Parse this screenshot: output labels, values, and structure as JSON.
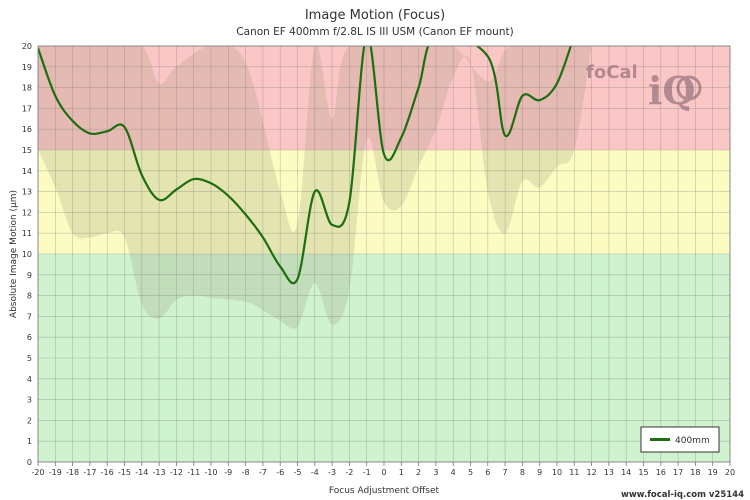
{
  "chart_data": {
    "type": "line",
    "title": "Image Motion (Focus)",
    "subtitle": "Canon EF 400mm f/2.8L IS III USM (Canon EF mount)",
    "xlabel": "Focus Adjustment Offset",
    "ylabel": "Absolute Image Motion (µm)",
    "xlim": [
      -20,
      20
    ],
    "ylim": [
      0,
      20
    ],
    "x_ticks": [
      -20,
      -19,
      -18,
      -17,
      -16,
      -15,
      -14,
      -13,
      -12,
      -11,
      -10,
      -9,
      -8,
      -7,
      -6,
      -5,
      -4,
      -3,
      -2,
      -1,
      0,
      1,
      2,
      3,
      4,
      5,
      6,
      7,
      8,
      9,
      10,
      11,
      12,
      13,
      14,
      15,
      16,
      17,
      18,
      19,
      20
    ],
    "y_ticks": [
      0,
      1,
      2,
      3,
      4,
      5,
      6,
      7,
      8,
      9,
      10,
      11,
      12,
      13,
      14,
      15,
      16,
      17,
      18,
      19,
      20
    ],
    "grid": true,
    "legend_position": "bottom-right",
    "zones": [
      {
        "from": 0,
        "to": 10,
        "color": "#cff2cf"
      },
      {
        "from": 10,
        "to": 15,
        "color": "#fbfbc2"
      },
      {
        "from": 15,
        "to": 20,
        "color": "#fbc6c6"
      }
    ],
    "series": [
      {
        "name": "400mm",
        "color": "#1e6e10",
        "points": [
          [
            -20,
            19.9
          ],
          [
            -19,
            17.6
          ],
          [
            -18,
            16.4
          ],
          [
            -17,
            15.8
          ],
          [
            -16,
            15.9
          ],
          [
            -15,
            16.1
          ],
          [
            -14,
            13.8
          ],
          [
            -13,
            12.6
          ],
          [
            -12,
            13.1
          ],
          [
            -11,
            13.6
          ],
          [
            -10,
            13.4
          ],
          [
            -9,
            12.8
          ],
          [
            -8,
            11.9
          ],
          [
            -7,
            10.8
          ],
          [
            -6,
            9.4
          ],
          [
            -5,
            8.8
          ],
          [
            -4,
            13.0
          ],
          [
            -3,
            11.4
          ],
          [
            -2,
            12.5
          ],
          [
            -1,
            20.5
          ],
          [
            0,
            14.8
          ],
          [
            1,
            15.6
          ],
          [
            2,
            18.0
          ],
          [
            3,
            20.5
          ],
          [
            6,
            19.5
          ],
          [
            7,
            15.7
          ],
          [
            8,
            17.6
          ],
          [
            9,
            17.4
          ],
          [
            10,
            18.2
          ],
          [
            11,
            20.5
          ]
        ]
      }
    ],
    "confidence_band": {
      "color": "#8a8a6a",
      "upper": [
        [
          -20,
          20
        ],
        [
          -18,
          20
        ],
        [
          -16,
          20
        ],
        [
          -14,
          20
        ],
        [
          -13,
          18.2
        ],
        [
          -12,
          19.0
        ],
        [
          -10,
          20
        ],
        [
          -8,
          19.2
        ],
        [
          -6,
          13.0
        ],
        [
          -5,
          11.5
        ],
        [
          -4,
          20
        ],
        [
          -3,
          16.5
        ],
        [
          -2,
          20
        ],
        [
          2,
          20
        ],
        [
          4,
          20
        ],
        [
          6,
          18.3
        ],
        [
          7,
          19.8
        ],
        [
          8,
          20
        ],
        [
          10,
          20
        ],
        [
          12,
          20
        ]
      ],
      "lower": [
        [
          -20,
          15.0
        ],
        [
          -19,
          13.2
        ],
        [
          -18,
          11.0
        ],
        [
          -17,
          10.8
        ],
        [
          -16,
          11.0
        ],
        [
          -15,
          10.8
        ],
        [
          -14,
          7.6
        ],
        [
          -13,
          6.9
        ],
        [
          -12,
          7.8
        ],
        [
          -11,
          8.0
        ],
        [
          -10,
          7.9
        ],
        [
          -8,
          7.7
        ],
        [
          -7,
          7.3
        ],
        [
          -6,
          6.8
        ],
        [
          -5,
          6.5
        ],
        [
          -4,
          8.6
        ],
        [
          -3,
          6.6
        ],
        [
          -2,
          8.3
        ],
        [
          -1,
          15.5
        ],
        [
          0,
          12.5
        ],
        [
          1,
          12.3
        ],
        [
          2,
          14.2
        ],
        [
          3,
          16.0
        ],
        [
          4,
          18.5
        ],
        [
          5,
          19.2
        ],
        [
          6,
          13.0
        ],
        [
          7,
          11.0
        ],
        [
          8,
          13.5
        ],
        [
          9,
          13.2
        ],
        [
          10,
          14.2
        ],
        [
          11,
          15.0
        ],
        [
          12,
          20
        ]
      ]
    }
  },
  "logo": {
    "text_a": "foCal",
    "text_b": "iQ"
  },
  "footer": "www.focal-iq.com  v25144"
}
